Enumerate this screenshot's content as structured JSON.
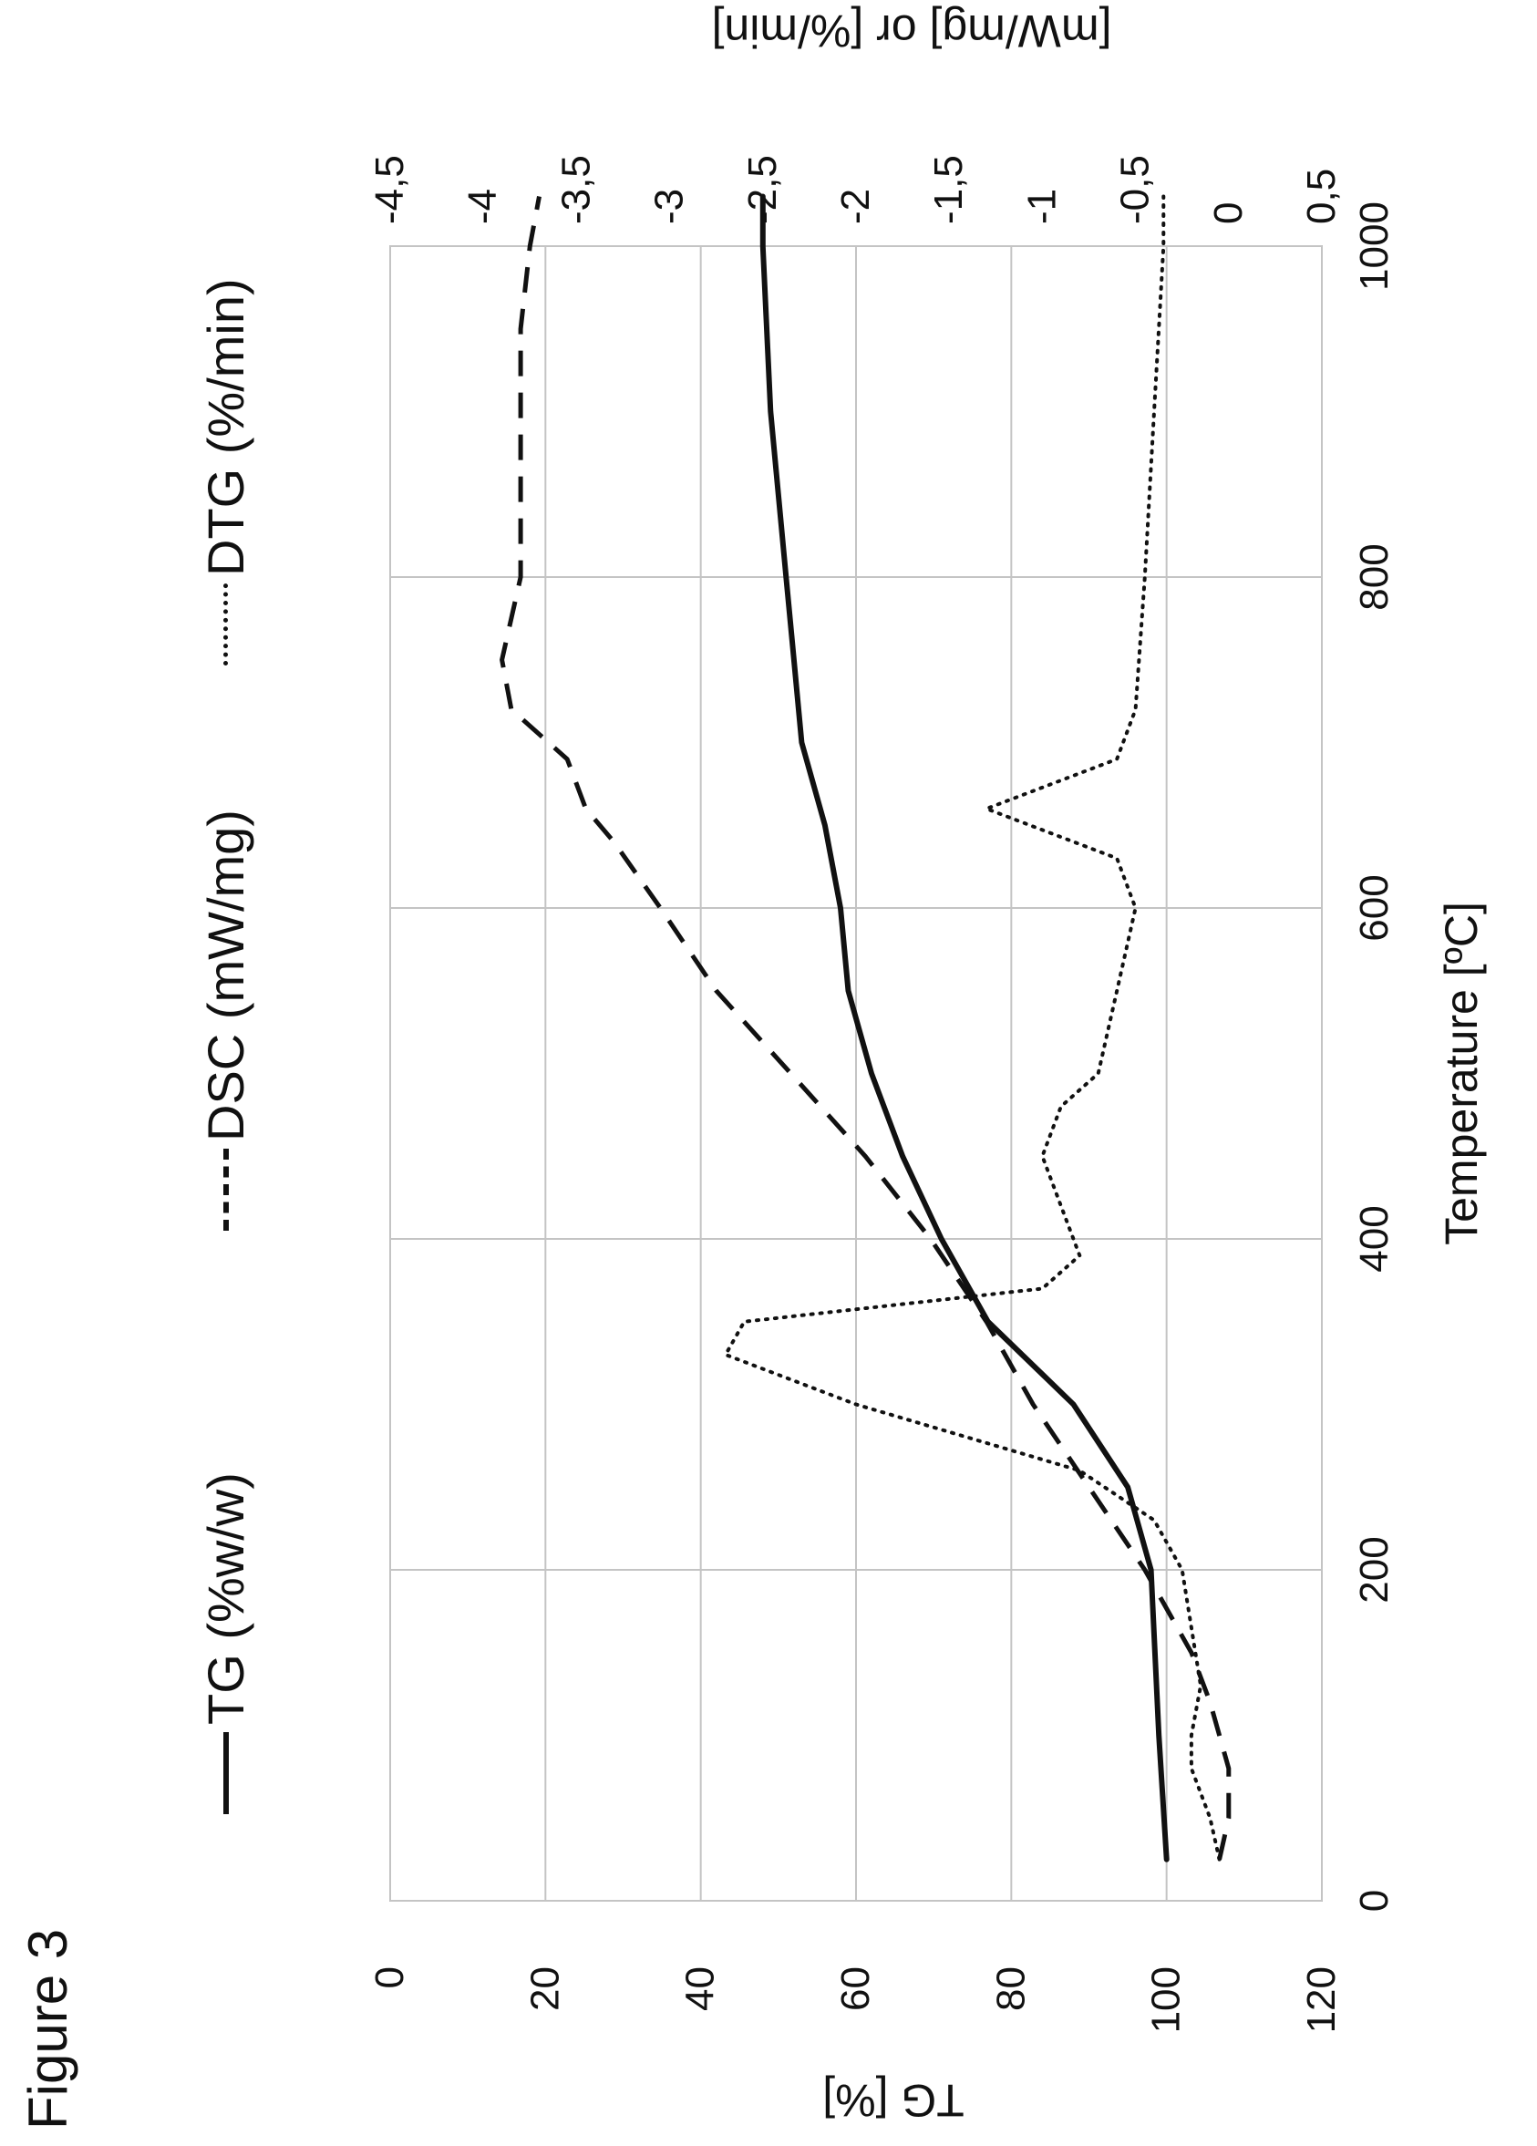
{
  "figure": {
    "label": "Figure 3"
  },
  "chart_data": {
    "type": "line",
    "xlabel": "Temperature [ºC]",
    "ylabel_left": "TG [%]",
    "ylabel_right": "[mW/mg] or [%/min]",
    "xlim": [
      0,
      1000
    ],
    "ylim_left": [
      0,
      120
    ],
    "ylim_right": [
      0.5,
      -4.5
    ],
    "x_ticks": [
      "0",
      "200",
      "400",
      "600",
      "800",
      "1000"
    ],
    "x_tick_values": [
      0,
      200,
      400,
      600,
      800,
      1000
    ],
    "y_left_ticks": [
      "0",
      "20",
      "40",
      "60",
      "80",
      "100",
      "120"
    ],
    "y_left_tick_values": [
      0,
      20,
      40,
      60,
      80,
      100,
      120
    ],
    "y_right_ticks": [
      "0,5",
      "0",
      "-0,5",
      "-1",
      "-1,5",
      "-2",
      "-2,5",
      "-3",
      "-3,5",
      "-4",
      "-4,5"
    ],
    "y_right_tick_values": [
      0.5,
      0,
      -0.5,
      -1,
      -1.5,
      -2,
      -2.5,
      -3,
      -3.5,
      -4,
      -4.5
    ],
    "grid": true,
    "legend_placement": "top",
    "series": [
      {
        "name": "TG (%w/w)",
        "axis": "left",
        "style": "solid",
        "points": [
          [
            25,
            100
          ],
          [
            100,
            99
          ],
          [
            200,
            98
          ],
          [
            250,
            95
          ],
          [
            300,
            88
          ],
          [
            350,
            77
          ],
          [
            400,
            71
          ],
          [
            450,
            66
          ],
          [
            500,
            62
          ],
          [
            550,
            59
          ],
          [
            600,
            58
          ],
          [
            650,
            56
          ],
          [
            700,
            53
          ],
          [
            750,
            52
          ],
          [
            800,
            51
          ],
          [
            900,
            49
          ],
          [
            1000,
            48
          ],
          [
            1030,
            48
          ]
        ]
      },
      {
        "name": "DSC (mW/mg)",
        "axis": "right",
        "style": "dashed",
        "points": [
          [
            25,
            -0.05
          ],
          [
            50,
            0
          ],
          [
            80,
            0
          ],
          [
            120,
            -0.1
          ],
          [
            150,
            -0.2
          ],
          [
            200,
            -0.45
          ],
          [
            250,
            -0.75
          ],
          [
            300,
            -1.05
          ],
          [
            350,
            -1.3
          ],
          [
            400,
            -1.6
          ],
          [
            450,
            -1.95
          ],
          [
            500,
            -2.35
          ],
          [
            550,
            -2.75
          ],
          [
            600,
            -3.05
          ],
          [
            640,
            -3.3
          ],
          [
            660,
            -3.45
          ],
          [
            690,
            -3.55
          ],
          [
            720,
            -3.85
          ],
          [
            750,
            -3.9
          ],
          [
            800,
            -3.8
          ],
          [
            850,
            -3.8
          ],
          [
            900,
            -3.8
          ],
          [
            950,
            -3.8
          ],
          [
            1000,
            -3.75
          ],
          [
            1030,
            -3.7
          ]
        ]
      },
      {
        "name": "DTG (%/min)",
        "axis": "right",
        "style": "dotted",
        "points": [
          [
            25,
            -0.05
          ],
          [
            50,
            -0.1
          ],
          [
            80,
            -0.2
          ],
          [
            100,
            -0.2
          ],
          [
            130,
            -0.15
          ],
          [
            200,
            -0.25
          ],
          [
            230,
            -0.4
          ],
          [
            260,
            -0.8
          ],
          [
            300,
            -2.0
          ],
          [
            330,
            -2.7
          ],
          [
            350,
            -2.6
          ],
          [
            370,
            -1.0
          ],
          [
            390,
            -0.8
          ],
          [
            420,
            -0.9
          ],
          [
            450,
            -1.0
          ],
          [
            480,
            -0.9
          ],
          [
            500,
            -0.7
          ],
          [
            550,
            -0.6
          ],
          [
            600,
            -0.5
          ],
          [
            630,
            -0.6
          ],
          [
            660,
            -1.3
          ],
          [
            690,
            -0.6
          ],
          [
            720,
            -0.5
          ],
          [
            800,
            -0.45
          ],
          [
            900,
            -0.4
          ],
          [
            1000,
            -0.35
          ],
          [
            1030,
            -0.35
          ]
        ]
      }
    ]
  }
}
